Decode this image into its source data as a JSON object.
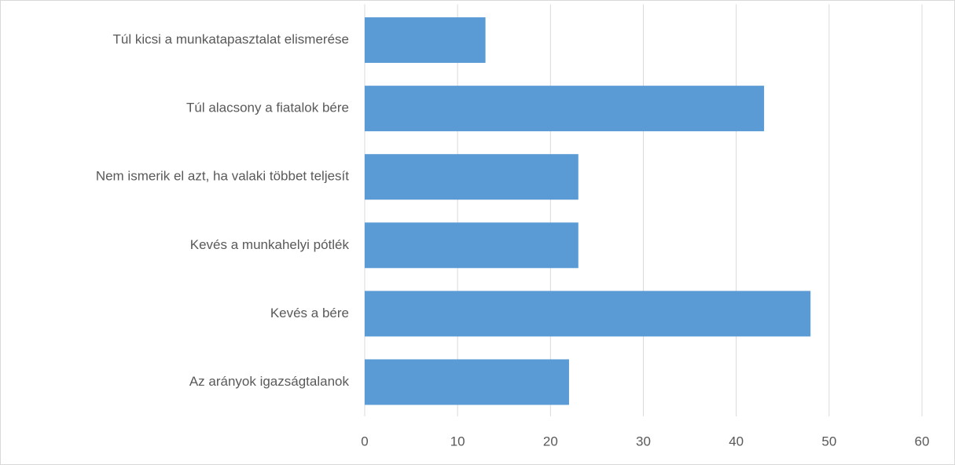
{
  "chart_data": {
    "type": "hbar",
    "categories": [
      "Túl kicsi a munkatapasztalat elismerése",
      "Túl alacsony a fiatalok bére",
      "Nem ismerik el azt, ha valaki többet teljesít",
      "Kevés a munkahelyi pótlék",
      "Kevés a bére",
      "Az arányok igazságtalanok"
    ],
    "values": [
      13,
      43,
      23,
      23,
      48,
      22
    ],
    "color": "#5b9bd5",
    "xlim": [
      0,
      60
    ],
    "xticks": [
      0,
      10,
      20,
      30,
      40,
      50,
      60
    ],
    "grid": true
  }
}
